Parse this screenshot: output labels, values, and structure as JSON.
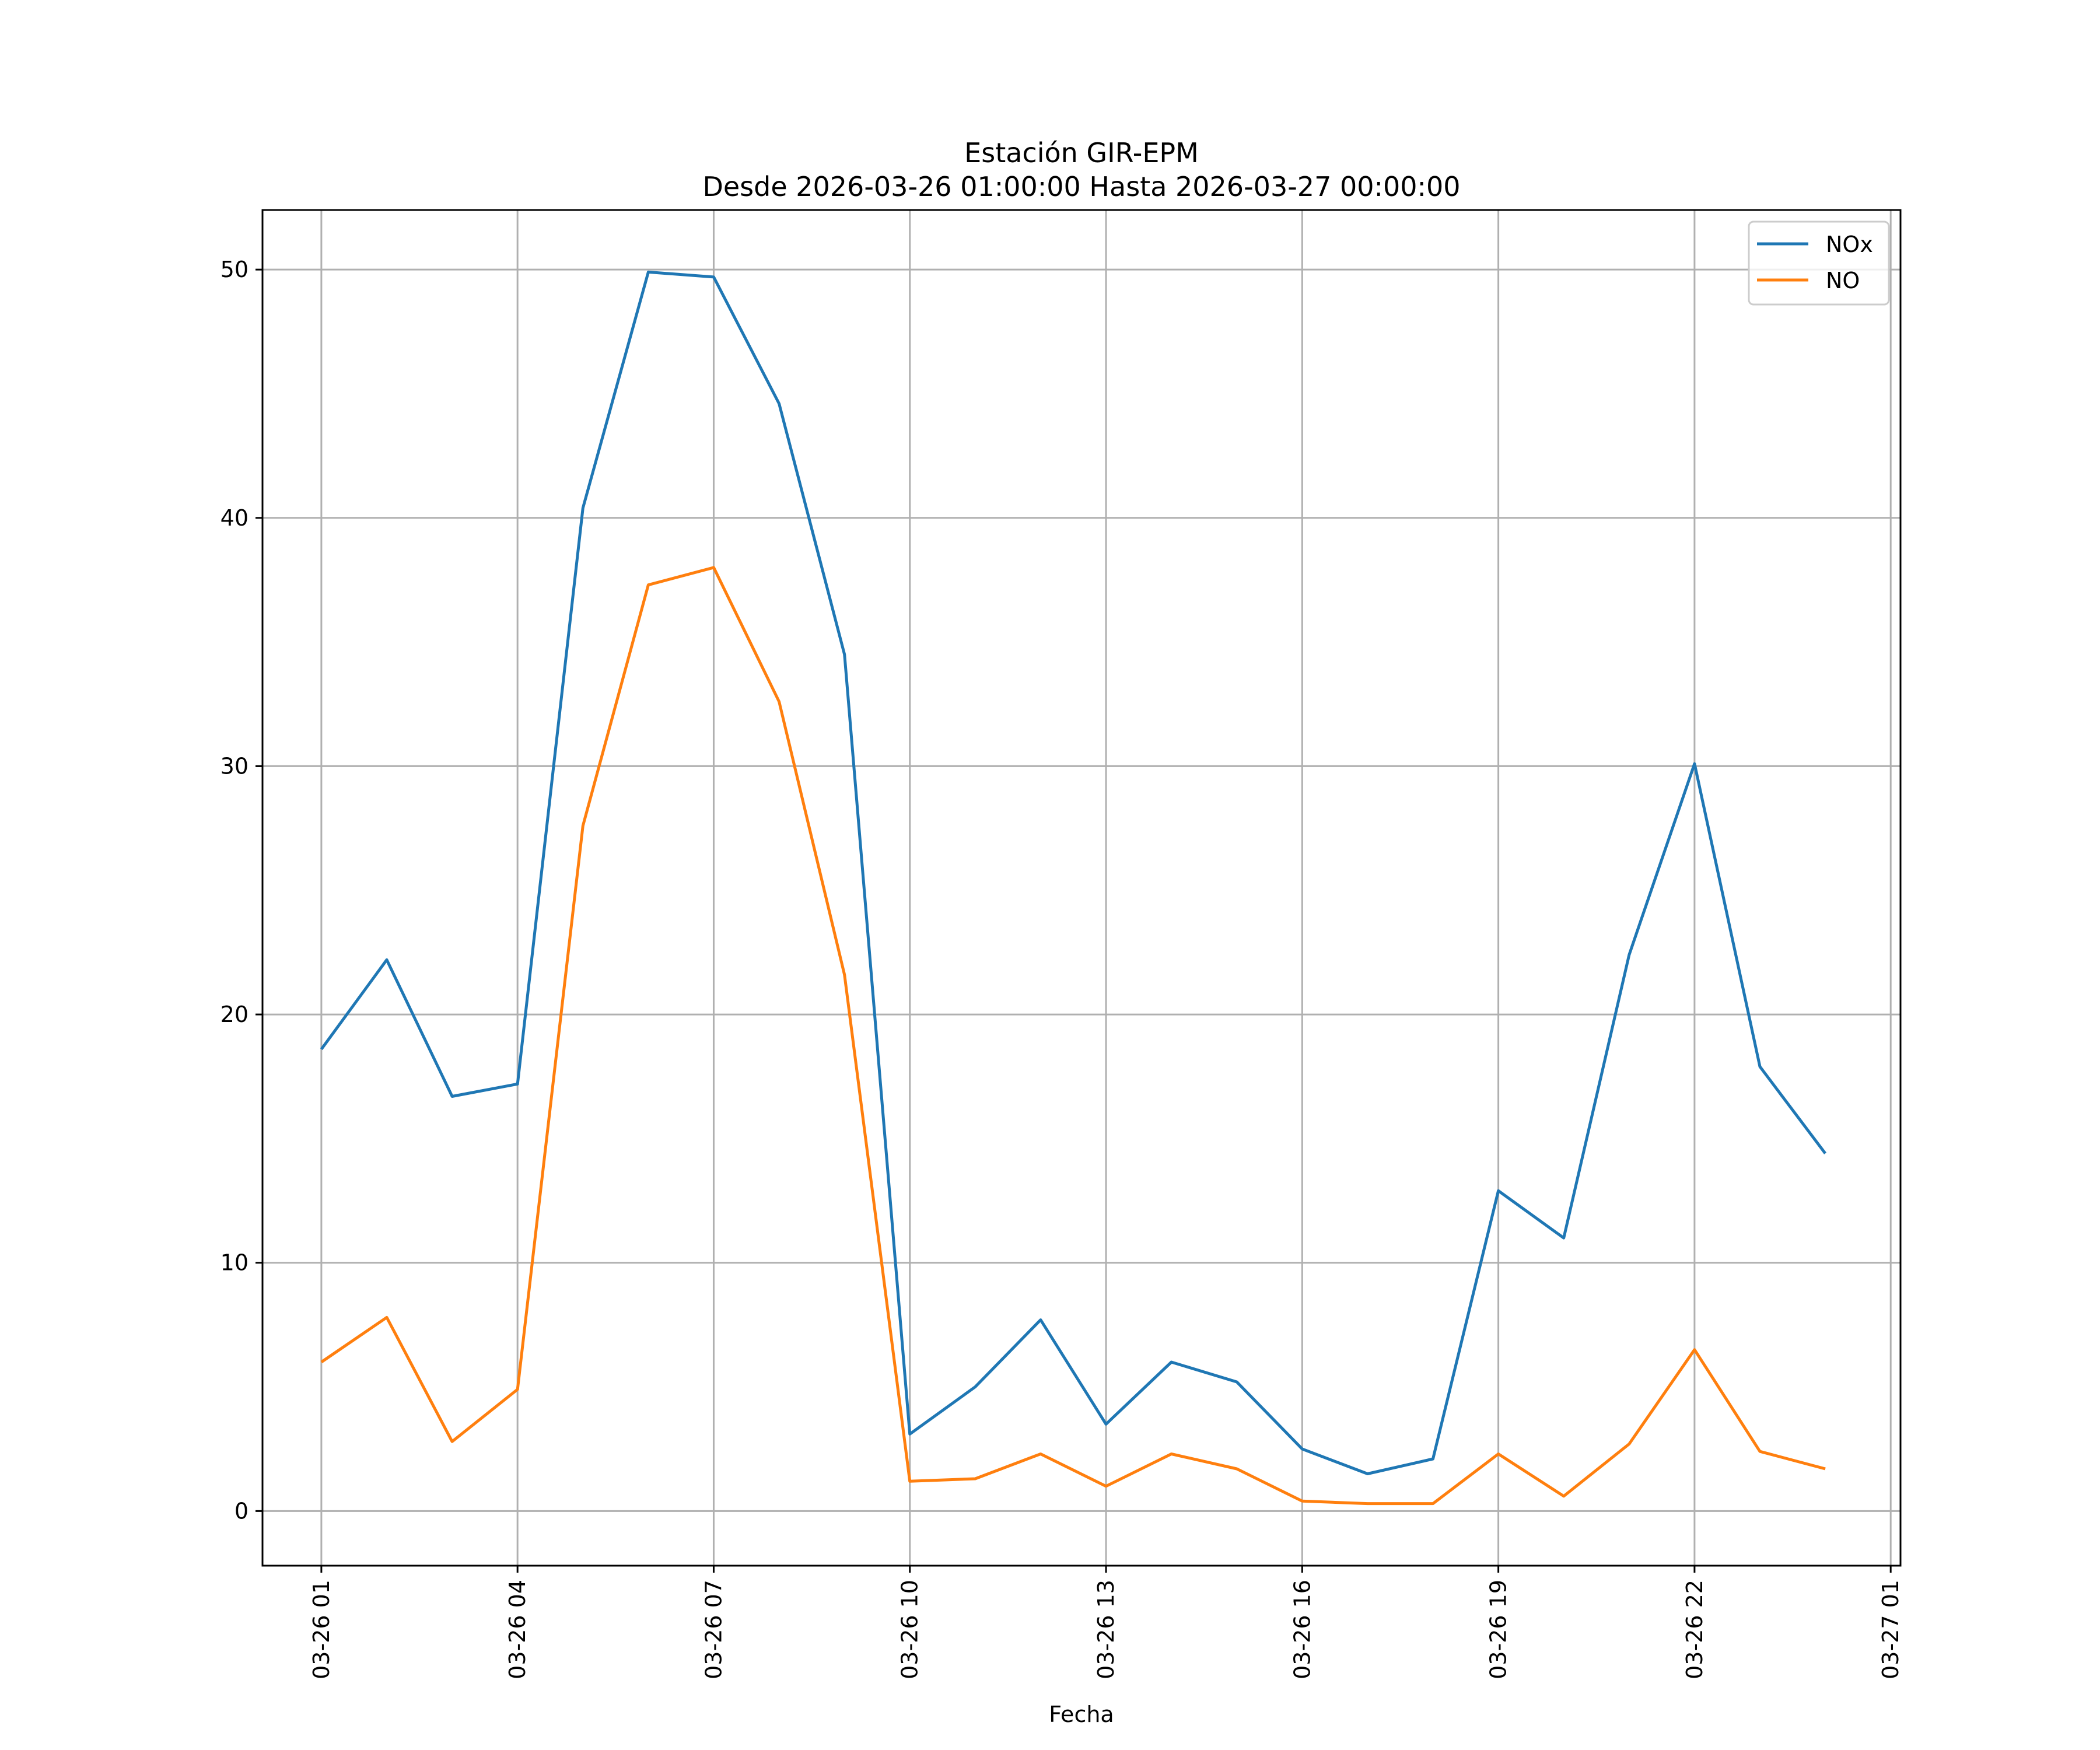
{
  "chart_data": {
    "type": "line",
    "title": "Estación GIR-EPM",
    "subtitle": "Desde 2026-03-26 01:00:00 Hasta 2026-03-27 00:00:00",
    "xlabel": "Fecha",
    "ylabel": "",
    "x": [
      "2026-03-26 01:00",
      "2026-03-26 02:00",
      "2026-03-26 03:00",
      "2026-03-26 04:00",
      "2026-03-26 05:00",
      "2026-03-26 06:00",
      "2026-03-26 07:00",
      "2026-03-26 08:00",
      "2026-03-26 09:00",
      "2026-03-26 10:00",
      "2026-03-26 11:00",
      "2026-03-26 12:00",
      "2026-03-26 13:00",
      "2026-03-26 14:00",
      "2026-03-26 15:00",
      "2026-03-26 16:00",
      "2026-03-26 17:00",
      "2026-03-26 18:00",
      "2026-03-26 19:00",
      "2026-03-26 20:00",
      "2026-03-26 21:00",
      "2026-03-26 22:00",
      "2026-03-26 23:00",
      "2026-03-27 00:00"
    ],
    "series": [
      {
        "name": "NOx",
        "color": "#1f77b4",
        "values": [
          18.6,
          22.2,
          16.7,
          17.2,
          40.4,
          49.9,
          49.7,
          44.6,
          34.5,
          3.1,
          5.0,
          7.7,
          3.5,
          6.0,
          5.2,
          2.5,
          1.5,
          2.1,
          12.9,
          11.0,
          22.4,
          30.1,
          17.9,
          14.4
        ]
      },
      {
        "name": "NO",
        "color": "#ff7f0e",
        "values": [
          6.0,
          7.8,
          2.8,
          4.9,
          27.6,
          37.3,
          38.0,
          32.6,
          21.6,
          1.2,
          1.3,
          2.3,
          1.0,
          2.3,
          1.7,
          0.4,
          0.3,
          0.3,
          2.3,
          0.6,
          2.7,
          6.5,
          2.4,
          1.7
        ]
      }
    ],
    "x_ticks": [
      "03-26 01",
      "03-26 04",
      "03-26 07",
      "03-26 10",
      "03-26 13",
      "03-26 16",
      "03-26 19",
      "03-26 22",
      "03-27 01"
    ],
    "y_ticks": [
      0,
      10,
      20,
      30,
      40,
      50
    ],
    "ylim": [
      -2.2,
      52.4
    ],
    "xlim": [
      "2026-03-26 00:06",
      "2026-03-27 01:09"
    ],
    "grid": true,
    "legend_position": "top-right"
  }
}
